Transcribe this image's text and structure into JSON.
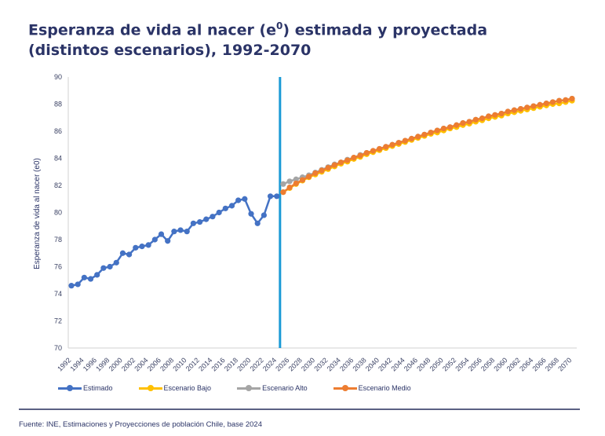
{
  "title_main": "Esperanza de vida al nacer (e",
  "title_sup": "0",
  "title_rest": ") estimada y proyectada",
  "title_line2": "(distintos escenarios), 1992-2070",
  "source": "Fuente: INE, Estimaciones y Proyecciones de población Chile, base 2024",
  "chart_data": {
    "type": "line",
    "title": "Esperanza de vida al nacer (e0) estimada y proyectada (distintos escenarios), 1992-2070",
    "xlabel": "",
    "ylabel": "Esperanza de vida al nacer (e0)",
    "ylim": [
      70,
      90
    ],
    "yticks": [
      70,
      72,
      74,
      76,
      78,
      80,
      82,
      84,
      86,
      88,
      90
    ],
    "xlim": [
      1992,
      2070
    ],
    "xtick_step": 2,
    "legend_position": "bottom",
    "grid": false,
    "divider_year": 2024.5,
    "divider_color": "#1b9ad6",
    "series": [
      {
        "name": "Estimado",
        "color": "#4472c4",
        "start_year": 1992,
        "values": [
          74.6,
          74.7,
          75.2,
          75.1,
          75.4,
          75.9,
          76.0,
          76.3,
          77.0,
          76.9,
          77.4,
          77.5,
          77.6,
          78.0,
          78.4,
          77.9,
          78.6,
          78.7,
          78.6,
          79.2,
          79.3,
          79.5,
          79.7,
          80.0,
          80.3,
          80.5,
          80.9,
          81.0,
          79.9,
          79.2,
          79.8,
          81.2,
          81.2
        ]
      },
      {
        "name": "Escenario Bajo",
        "color": "#ffc000",
        "start_year": 2025,
        "values": [
          81.5,
          81.8,
          82.1,
          82.35,
          82.6,
          82.8,
          83.0,
          83.2,
          83.4,
          83.6,
          83.75,
          83.95,
          84.1,
          84.3,
          84.45,
          84.6,
          84.75,
          84.9,
          85.05,
          85.2,
          85.35,
          85.5,
          85.65,
          85.8,
          85.9,
          86.05,
          86.2,
          86.3,
          86.45,
          86.55,
          86.7,
          86.8,
          86.95,
          87.05,
          87.15,
          87.3,
          87.4,
          87.5,
          87.6,
          87.7,
          87.8,
          87.9,
          88.0,
          88.05,
          88.15,
          88.25
        ]
      },
      {
        "name": "Escenario Alto",
        "color": "#a5a5a5",
        "start_year": 2025,
        "values": [
          82.1,
          82.3,
          82.45,
          82.6,
          82.75,
          82.95,
          83.15,
          83.35,
          83.55,
          83.7,
          83.9,
          84.05,
          84.25,
          84.4,
          84.55,
          84.7,
          84.85,
          85.0,
          85.15,
          85.3,
          85.45,
          85.6,
          85.75,
          85.9,
          86.05,
          86.2,
          86.3,
          86.45,
          86.6,
          86.7,
          86.85,
          86.95,
          87.1,
          87.2,
          87.3,
          87.45,
          87.55,
          87.65,
          87.75,
          87.85,
          87.95,
          88.05,
          88.15,
          88.25,
          88.3,
          88.4
        ]
      },
      {
        "name": "Escenario Medio",
        "color": "#ed7d31",
        "start_year": 2025,
        "values": [
          81.5,
          81.85,
          82.15,
          82.4,
          82.65,
          82.9,
          83.1,
          83.3,
          83.5,
          83.7,
          83.85,
          84.05,
          84.2,
          84.4,
          84.55,
          84.7,
          84.85,
          85.0,
          85.15,
          85.3,
          85.45,
          85.6,
          85.75,
          85.9,
          86.05,
          86.2,
          86.3,
          86.45,
          86.6,
          86.7,
          86.85,
          86.95,
          87.1,
          87.2,
          87.3,
          87.45,
          87.55,
          87.65,
          87.75,
          87.85,
          87.95,
          88.05,
          88.15,
          88.25,
          88.3,
          88.4
        ]
      }
    ]
  }
}
